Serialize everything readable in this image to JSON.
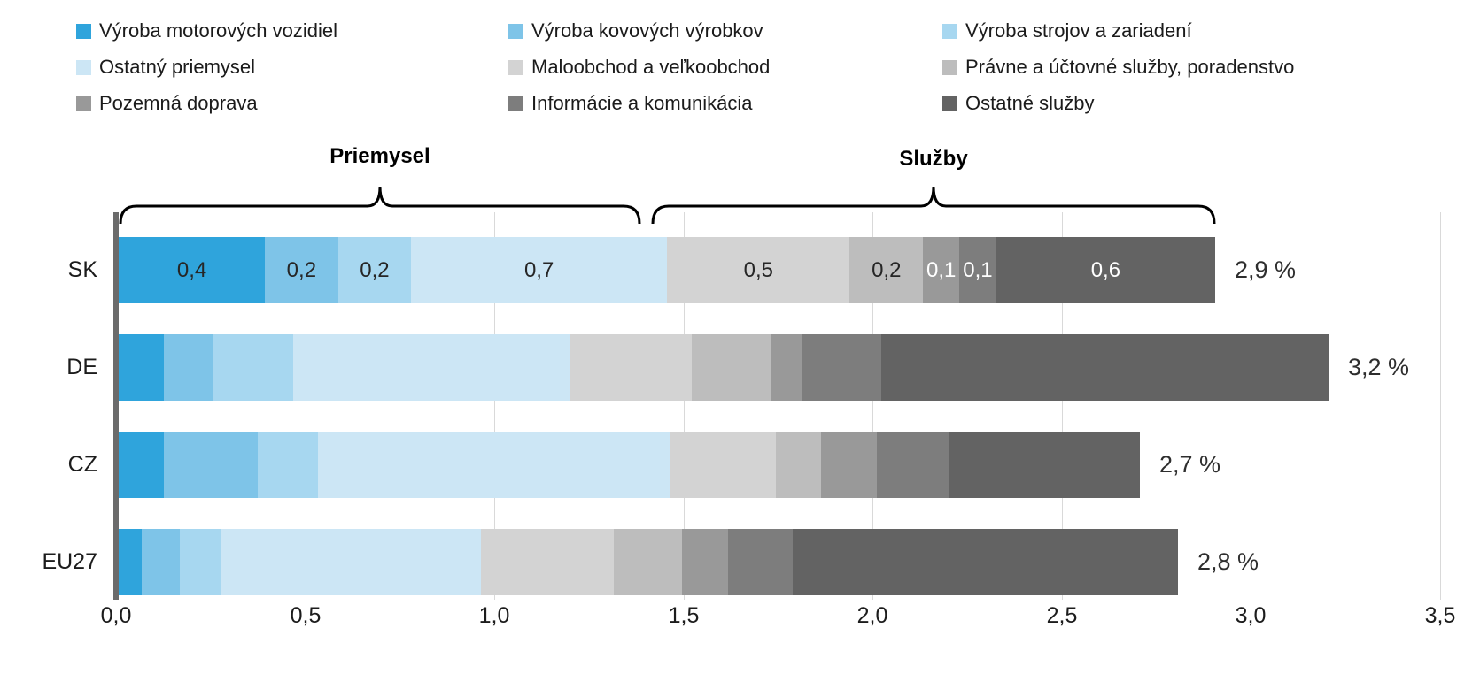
{
  "chart_data": {
    "type": "bar",
    "stacked": true,
    "horizontal": true,
    "legend_position": "top",
    "grid": true,
    "categories": [
      "SK",
      "DE",
      "CZ",
      "EU27"
    ],
    "series": [
      {
        "name": "Výroba motorových vozidiel",
        "color": "#2fa4dc",
        "values": [
          0.4,
          0.12,
          0.12,
          0.06
        ]
      },
      {
        "name": "Výroba kovových výrobkov",
        "color": "#7ec4e8",
        "values": [
          0.2,
          0.13,
          0.25,
          0.1
        ]
      },
      {
        "name": "Výroba strojov a zariadení",
        "color": "#a7d7f0",
        "values": [
          0.2,
          0.21,
          0.16,
          0.11
        ]
      },
      {
        "name": "Ostatný priemysel",
        "color": "#cce6f5",
        "values": [
          0.7,
          0.73,
          0.94,
          0.68
        ]
      },
      {
        "name": "Maloobchod a veľkoobchod",
        "color": "#d3d3d3",
        "values": [
          0.5,
          0.32,
          0.28,
          0.35
        ]
      },
      {
        "name": "Právne a účtovné služby, poradenstvo",
        "color": "#bdbdbd",
        "values": [
          0.2,
          0.21,
          0.12,
          0.18
        ]
      },
      {
        "name": "Pozemná doprava",
        "color": "#999999",
        "values": [
          0.1,
          0.08,
          0.15,
          0.12
        ]
      },
      {
        "name": "Informácie a komunikácia",
        "color": "#7d7d7d",
        "values": [
          0.1,
          0.21,
          0.19,
          0.17
        ]
      },
      {
        "name": "Ostatné služby",
        "color": "#636363",
        "values": [
          0.6,
          1.18,
          0.51,
          1.01
        ]
      }
    ],
    "bar_totals": [
      2.9,
      3.2,
      2.7,
      2.8
    ],
    "bar_total_labels": [
      "2,9 %",
      "3,2 %",
      "2,7 %",
      "2,8 %"
    ],
    "sk_segment_labels": [
      "0,4",
      "0,2",
      "0,2",
      "0,7",
      "0,5",
      "0,2",
      "0,1",
      "0,1",
      "0,6"
    ],
    "groups": [
      {
        "label": "Priemysel",
        "series": [
          0,
          1,
          2,
          3
        ]
      },
      {
        "label": "Služby",
        "series": [
          4,
          5,
          6,
          7,
          8
        ]
      }
    ],
    "x_axis": {
      "min": 0.0,
      "max": 3.5,
      "tick_step": 0.5,
      "tick_labels": [
        "0,0",
        "0,5",
        "1,0",
        "1,5",
        "2,0",
        "2,5",
        "3,0",
        "3,5"
      ]
    }
  }
}
